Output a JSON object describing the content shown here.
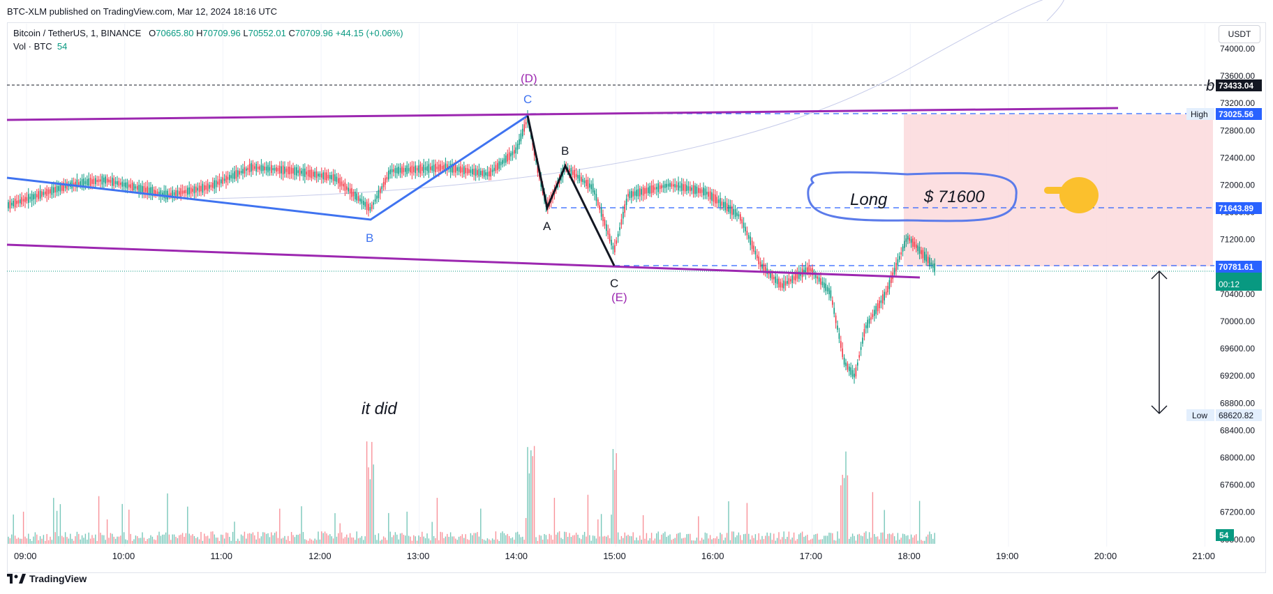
{
  "header": {
    "publish_line": "BTC-XLM published on TradingView.com, Mar 12, 2024 18:16 UTC"
  },
  "legend": {
    "symbol": "Bitcoin / TetherUS, 1, BINANCE",
    "o_label": "O",
    "o_value": "70665.80",
    "h_label": "H",
    "h_value": "70709.96",
    "l_label": "L",
    "l_value": "70552.01",
    "c_label": "C",
    "c_value": "70709.96",
    "change": "+44.15 (+0.06%)",
    "vol_label": "Vol · BTC",
    "vol_value": "54"
  },
  "toolbar": {
    "currency": "USDT"
  },
  "price_axis": {
    "ticks": [
      "74000.00",
      "73600.00",
      "73200.00",
      "72800.00",
      "72400.00",
      "72000.00",
      "71600.00",
      "71200.00",
      "70800.00",
      "70400.00",
      "70000.00",
      "69600.00",
      "69200.00",
      "68800.00",
      "68400.00",
      "68000.00",
      "67600.00",
      "67200.00",
      "66800.00"
    ],
    "badges": {
      "b_level": "73433.04",
      "high_label": "High",
      "high_value": "73025.56",
      "long_level": "71643.89",
      "stop_level": "70781.61",
      "last_price": "70709.96",
      "countdown": "00:12",
      "low_label": "Low",
      "low_value": "68620.82",
      "volume": "54"
    },
    "b_marker": "b"
  },
  "time_axis": {
    "ticks": [
      "09:00",
      "10:00",
      "11:00",
      "12:00",
      "13:00",
      "14:00",
      "15:00",
      "16:00",
      "17:00",
      "18:00",
      "19:00",
      "20:00",
      "21:00"
    ]
  },
  "annotations": {
    "wave_b_blue": "B",
    "wave_c_blue": "C",
    "wave_d": "(D)",
    "wave_a_black": "A",
    "wave_b_black": "B",
    "wave_c_black": "C",
    "wave_e": "(E)",
    "long_text": "Long",
    "long_price": "$ 71600",
    "it_did": "it did"
  },
  "colors": {
    "up": "#089981",
    "down": "#f23645",
    "blue_line": "#3f73f0",
    "purple_line": "#9c27b0",
    "target_zone": "#fbd9dc",
    "badge_blue": "#2962ff",
    "badge_green": "#089981"
  },
  "footer": {
    "brand": "TradingView"
  }
}
